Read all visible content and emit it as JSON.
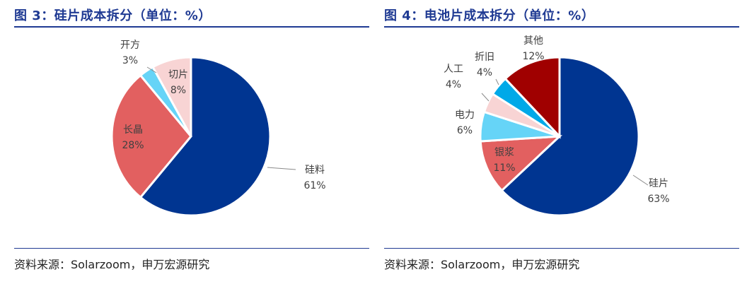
{
  "left": {
    "title": "图 3：硅片成本拆分（单位：%）",
    "source": "资料来源：Solarzoom，申万宏源研究"
  },
  "right": {
    "title": "图 4：电池片成本拆分（单位：%）",
    "source": "资料来源：Solarzoom，申万宏源研究"
  },
  "chart_data": [
    {
      "type": "pie",
      "title": "图 3：硅片成本拆分（单位：%）",
      "slices": [
        {
          "label": "硅料",
          "value": 61,
          "value_label": "61%",
          "color": "#003591"
        },
        {
          "label": "长晶",
          "value": 28,
          "value_label": "28%",
          "color": "#e26060"
        },
        {
          "label": "开方",
          "value": 3,
          "value_label": "3%",
          "color": "#66d4f7"
        },
        {
          "label": "切片",
          "value": 8,
          "value_label": "8%",
          "color": "#f8d4d4"
        }
      ]
    },
    {
      "type": "pie",
      "title": "图 4：电池片成本拆分（单位：%）",
      "slices": [
        {
          "label": "硅片",
          "value": 63,
          "value_label": "63%",
          "color": "#003591"
        },
        {
          "label": "银浆",
          "value": 11,
          "value_label": "11%",
          "color": "#e26060"
        },
        {
          "label": "电力",
          "value": 6,
          "value_label": "6%",
          "color": "#66d4f7"
        },
        {
          "label": "人工",
          "value": 4,
          "value_label": "4%",
          "color": "#f8d4d4"
        },
        {
          "label": "折旧",
          "value": 4,
          "value_label": "4%",
          "color": "#00a9e8"
        },
        {
          "label": "其他",
          "value": 12,
          "value_label": "12%",
          "color": "#a00000"
        }
      ]
    }
  ]
}
